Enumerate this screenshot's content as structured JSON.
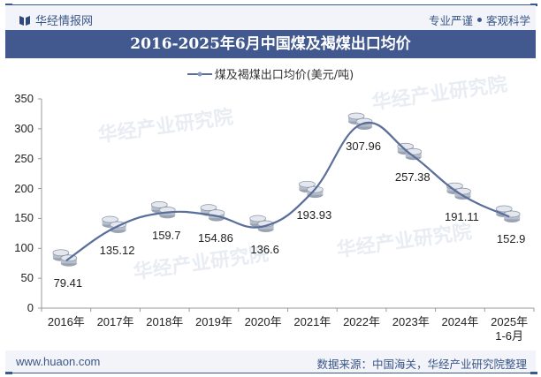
{
  "header": {
    "brand": "华经情报网",
    "slogan_left": "专业严谨",
    "slogan_right": "客观科学"
  },
  "title": "2016-2025年6月中国煤及褐煤出口均价",
  "legend": {
    "label": "煤及褐煤出口均价(美元/吨)"
  },
  "footer": {
    "url": "www.huaon.com",
    "source": "数据来源：中国海关，华经产业研究院整理"
  },
  "watermark": "华经产业研究院",
  "colors": {
    "line": "#5a6e9a",
    "title_bg": "#42598f",
    "header_bg": "#f2f4f9",
    "text_accent": "#3a5688"
  },
  "chart_data": {
    "type": "line",
    "title": "2016-2025年6月中国煤及褐煤出口均价",
    "xlabel": "",
    "ylabel": "",
    "ylim": [
      0,
      350
    ],
    "yticks": [
      "0",
      "50",
      "100",
      "150",
      "200",
      "250",
      "300",
      "350"
    ],
    "categories": [
      "2016年",
      "2017年",
      "2018年",
      "2019年",
      "2020年",
      "2021年",
      "2022年",
      "2023年",
      "2024年",
      "2025年\n1-6月"
    ],
    "series": [
      {
        "name": "煤及褐煤出口均价(美元/吨)",
        "values": [
          79.41,
          135.12,
          159.7,
          154.86,
          136.6,
          193.93,
          307.96,
          257.38,
          191.11,
          152.9
        ]
      }
    ],
    "data_labels": [
      "79.41",
      "135.12",
      "159.7",
      "154.86",
      "136.6",
      "193.93",
      "307.96",
      "257.38",
      "191.11",
      "152.9"
    ],
    "grid": false,
    "legend_position": "top",
    "smooth": true
  }
}
